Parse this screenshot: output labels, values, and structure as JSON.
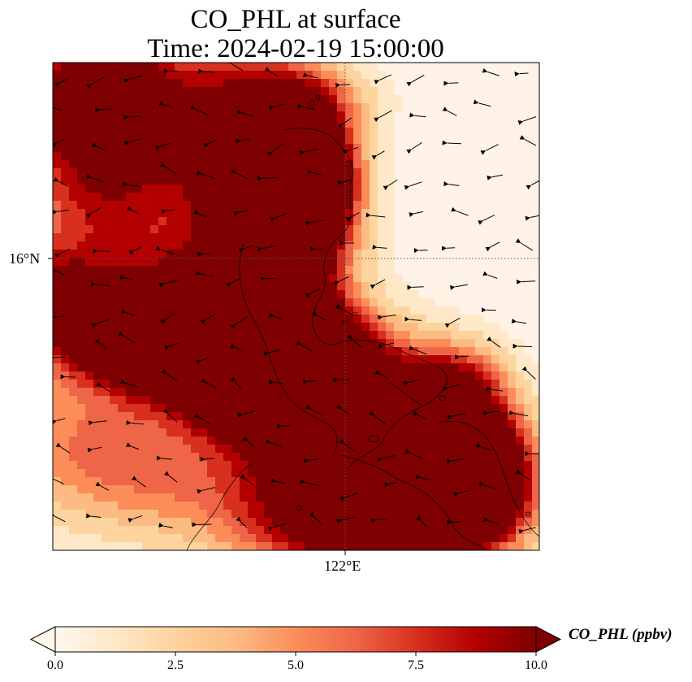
{
  "title": {
    "line1": "CO_PHL at surface",
    "line2": "Time: 2024-02-19 15:00:00"
  },
  "map": {
    "lat_label": "16°N",
    "lon_label": "122°E",
    "gridlines": "dotted",
    "coastlines": true,
    "wind_vectors": true
  },
  "colorbar": {
    "label": "CO_PHL (ppbv)",
    "colormap": "OrRd",
    "range": [
      0,
      10
    ],
    "extend": "both",
    "ticks": [
      "0.0",
      "2.5",
      "5.0",
      "7.5",
      "10.0"
    ],
    "colors": [
      "#fff7ec",
      "#fee8c8",
      "#fdd49e",
      "#fdbb84",
      "#fc8d59",
      "#ef6548",
      "#d7301f",
      "#b30000",
      "#7f0000"
    ]
  }
}
